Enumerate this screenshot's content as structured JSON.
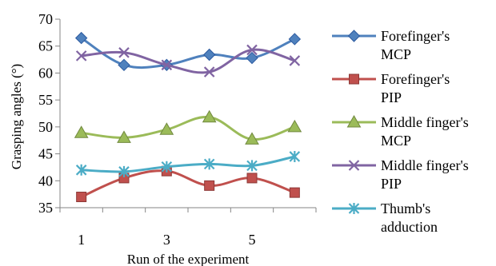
{
  "chart_data": {
    "type": "line",
    "xlabel": "Run of the experiment",
    "ylabel": "Grasping angles (°)",
    "x": [
      1,
      2,
      3,
      4,
      5,
      6
    ],
    "x_ticks": [
      1,
      3,
      5
    ],
    "ylim": [
      35,
      70
    ],
    "y_ticks": [
      35,
      40,
      45,
      50,
      55,
      60,
      65,
      70
    ],
    "grid": false,
    "legend_position": "right",
    "series": [
      {
        "name": "Forefinger's MCP",
        "legend_lines": [
          "Forefinger's",
          "MCP"
        ],
        "color": "#4f81bd",
        "marker": "diamond",
        "values": [
          66.5,
          61.5,
          61.5,
          63.4,
          62.8,
          66.3
        ]
      },
      {
        "name": "Forefinger's PIP",
        "legend_lines": [
          "Forefinger's",
          "PIP"
        ],
        "color": "#c0504d",
        "marker": "square",
        "values": [
          37.0,
          40.5,
          41.8,
          39.1,
          40.5,
          37.8
        ]
      },
      {
        "name": "Middle finger's MCP",
        "legend_lines": [
          "Middle finger's",
          "MCP"
        ],
        "color": "#9bbb59",
        "marker": "triangle",
        "values": [
          48.9,
          48.0,
          49.5,
          51.8,
          47.7,
          50.0
        ]
      },
      {
        "name": "Middle finger's PIP",
        "legend_lines": [
          "Middle finger's",
          "PIP"
        ],
        "color": "#8064a2",
        "marker": "x",
        "values": [
          63.2,
          63.8,
          61.5,
          60.2,
          64.3,
          62.3
        ]
      },
      {
        "name": "Thumb's adduction",
        "legend_lines": [
          "Thumb's",
          "adduction"
        ],
        "color": "#4bacc6",
        "marker": "star",
        "values": [
          42.0,
          41.7,
          42.6,
          43.1,
          42.8,
          44.5
        ]
      }
    ]
  }
}
